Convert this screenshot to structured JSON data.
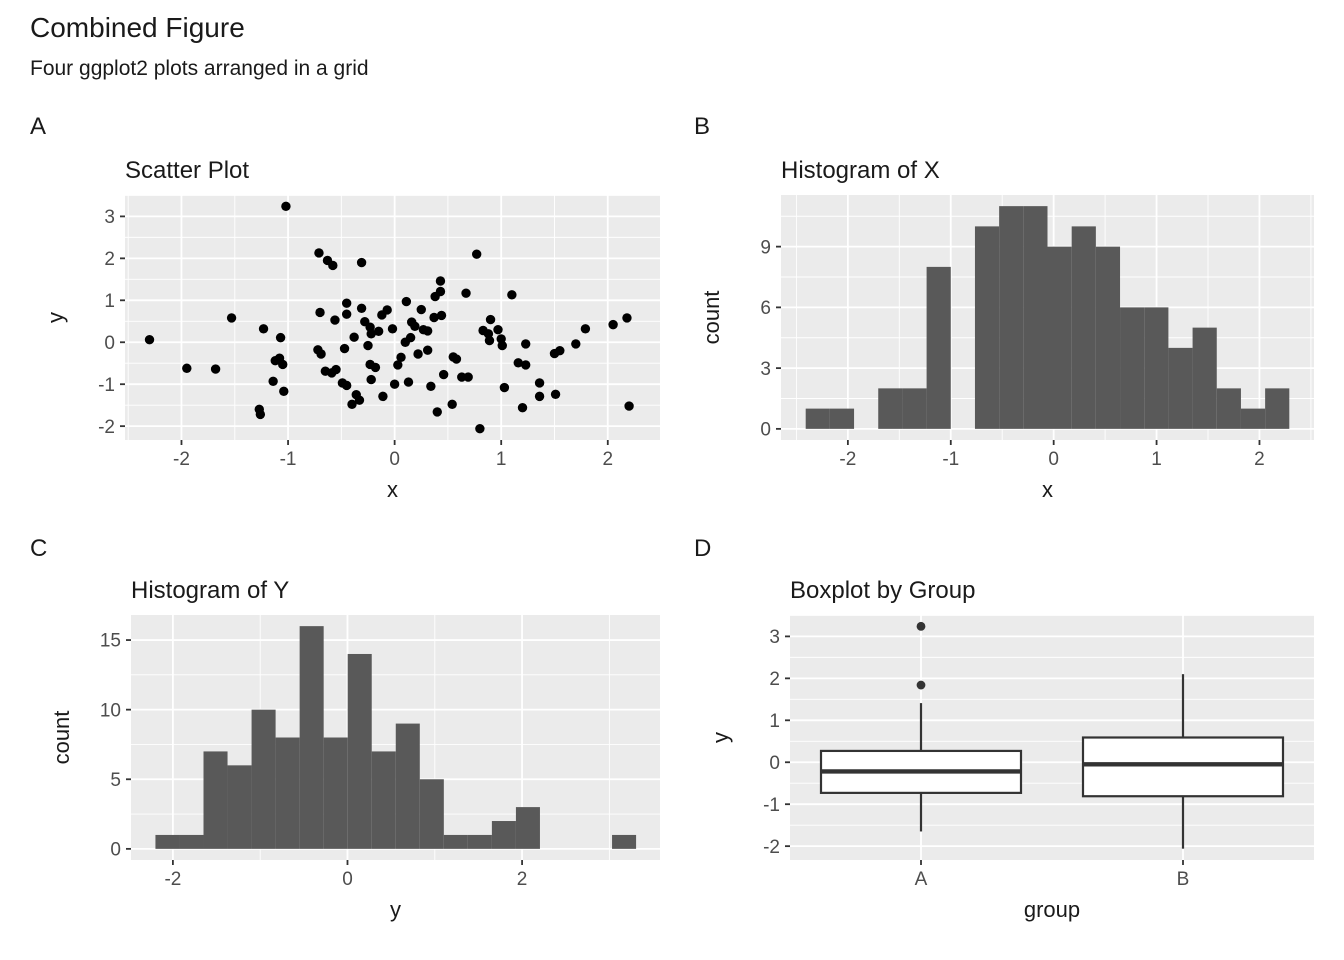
{
  "page": {
    "title": "Combined Figure",
    "subtitle": "Four ggplot2 plots arranged in a grid",
    "background": "#FFFFFF"
  },
  "theme": {
    "panel_bg": "#EBEBEB",
    "grid_color": "#FFFFFF",
    "tick_label_color": "#4D4D4D",
    "text_color": "#1A1A1A",
    "tick_mark_color": "#333333",
    "bar_fill": "#595959",
    "point_color": "#000000",
    "box_stroke": "#333333",
    "box_fill": "#FFFFFF",
    "outlier_color": "#333333"
  },
  "chart_data": [
    {
      "id": "scatter",
      "tag": "A",
      "type": "scatter",
      "title": "Scatter Plot",
      "xlabel": "x",
      "ylabel": "y",
      "xlim": [
        -2.53,
        2.49
      ],
      "ylim": [
        -2.33,
        3.51
      ],
      "xticks": [
        -2,
        -1,
        0,
        1,
        2
      ],
      "yticks": [
        -2,
        -1,
        0,
        1,
        2,
        3
      ],
      "grid": true,
      "points": [
        [
          -2.3,
          0.06
        ],
        [
          -1.95,
          -0.62
        ],
        [
          -1.68,
          -0.64
        ],
        [
          -1.53,
          0.58
        ],
        [
          -1.27,
          -1.6
        ],
        [
          -1.26,
          -1.72
        ],
        [
          -1.23,
          0.32
        ],
        [
          -1.14,
          -0.93
        ],
        [
          -1.12,
          -0.44
        ],
        [
          -1.08,
          -0.38
        ],
        [
          -1.07,
          0.11
        ],
        [
          -1.05,
          -0.53
        ],
        [
          -1.04,
          -1.17
        ],
        [
          -1.02,
          3.24
        ],
        [
          -0.72,
          -0.18
        ],
        [
          -0.71,
          2.13
        ],
        [
          -0.7,
          0.71
        ],
        [
          -0.69,
          -0.28
        ],
        [
          -0.65,
          -0.69
        ],
        [
          -0.63,
          1.95
        ],
        [
          -0.59,
          -0.73
        ],
        [
          -0.58,
          1.83
        ],
        [
          -0.56,
          0.53
        ],
        [
          -0.55,
          -0.65
        ],
        [
          -0.49,
          -0.97
        ],
        [
          -0.47,
          -0.15
        ],
        [
          -0.45,
          0.93
        ],
        [
          -0.45,
          0.67
        ],
        [
          -0.45,
          -1.03
        ],
        [
          -0.4,
          -1.48
        ],
        [
          -0.38,
          0.12
        ],
        [
          -0.36,
          -1.25
        ],
        [
          -0.33,
          -1.38
        ],
        [
          -0.31,
          1.9
        ],
        [
          -0.31,
          0.81
        ],
        [
          -0.28,
          0.49
        ],
        [
          -0.25,
          -0.08
        ],
        [
          -0.23,
          0.36
        ],
        [
          -0.23,
          -0.53
        ],
        [
          -0.22,
          0.2
        ],
        [
          -0.22,
          -0.89
        ],
        [
          -0.18,
          -0.6
        ],
        [
          -0.15,
          0.26
        ],
        [
          -0.12,
          0.65
        ],
        [
          -0.11,
          -1.29
        ],
        [
          -0.07,
          0.77
        ],
        [
          -0.02,
          0.32
        ],
        [
          0.0,
          -1.0
        ],
        [
          0.03,
          -0.54
        ],
        [
          0.06,
          -0.36
        ],
        [
          0.1,
          0.0
        ],
        [
          0.11,
          0.97
        ],
        [
          0.13,
          -0.95
        ],
        [
          0.15,
          0.11
        ],
        [
          0.16,
          0.48
        ],
        [
          0.19,
          0.38
        ],
        [
          0.22,
          -0.28
        ],
        [
          0.25,
          0.78
        ],
        [
          0.27,
          0.3
        ],
        [
          0.31,
          0.27
        ],
        [
          0.31,
          -0.19
        ],
        [
          0.34,
          -1.05
        ],
        [
          0.37,
          0.59
        ],
        [
          0.38,
          1.09
        ],
        [
          0.4,
          -1.66
        ],
        [
          0.43,
          1.46
        ],
        [
          0.43,
          1.21
        ],
        [
          0.44,
          0.64
        ],
        [
          0.46,
          -0.77
        ],
        [
          0.54,
          -1.48
        ],
        [
          0.55,
          -0.35
        ],
        [
          0.58,
          -0.4
        ],
        [
          0.63,
          -0.83
        ],
        [
          0.67,
          1.17
        ],
        [
          0.69,
          -0.83
        ],
        [
          0.77,
          2.1
        ],
        [
          0.8,
          -2.06
        ],
        [
          0.83,
          0.28
        ],
        [
          0.88,
          0.2
        ],
        [
          0.89,
          0.04
        ],
        [
          0.9,
          0.54
        ],
        [
          0.97,
          0.3
        ],
        [
          1.0,
          0.08
        ],
        [
          1.01,
          -0.08
        ],
        [
          1.03,
          -1.08
        ],
        [
          1.1,
          1.13
        ],
        [
          1.16,
          -0.49
        ],
        [
          1.2,
          -1.56
        ],
        [
          1.23,
          -0.04
        ],
        [
          1.23,
          -0.54
        ],
        [
          1.36,
          -0.97
        ],
        [
          1.36,
          -1.29
        ],
        [
          1.5,
          -0.27
        ],
        [
          1.51,
          -1.24
        ],
        [
          1.55,
          -0.2
        ],
        [
          1.7,
          -0.04
        ],
        [
          1.79,
          0.32
        ],
        [
          2.05,
          0.42
        ],
        [
          2.18,
          0.58
        ],
        [
          2.2,
          -1.52
        ]
      ]
    },
    {
      "id": "hist-x",
      "tag": "B",
      "type": "histogram",
      "title": "Histogram of X",
      "xlabel": "x",
      "ylabel": "count",
      "xlim": [
        -2.65,
        2.53
      ],
      "ylim": [
        -0.55,
        11.55
      ],
      "xticks": [
        -2,
        -1,
        0,
        1,
        2
      ],
      "yticks": [
        0,
        3,
        6,
        9
      ],
      "grid": true,
      "bin_start": -2.41,
      "bin_width": 0.235,
      "counts": [
        1,
        1,
        0,
        2,
        2,
        8,
        0,
        10,
        11,
        11,
        9,
        10,
        9,
        6,
        6,
        4,
        5,
        2,
        1,
        2
      ]
    },
    {
      "id": "hist-y",
      "tag": "C",
      "type": "histogram",
      "title": "Histogram of Y",
      "xlabel": "y",
      "ylabel": "count",
      "xlim": [
        -2.48,
        3.58
      ],
      "ylim": [
        -0.8,
        16.8
      ],
      "xticks": [
        -2,
        0,
        2
      ],
      "yticks": [
        0,
        5,
        10,
        15
      ],
      "grid": true,
      "bin_start": -2.2,
      "bin_width": 0.2753,
      "counts": [
        1,
        1,
        7,
        6,
        10,
        8,
        16,
        8,
        14,
        7,
        9,
        5,
        1,
        1,
        2,
        3,
        0,
        0,
        0,
        1
      ]
    },
    {
      "id": "boxplot",
      "tag": "D",
      "type": "boxplot",
      "title": "Boxplot by Group",
      "xlabel": "group",
      "ylabel": "y",
      "ylim": [
        -2.33,
        3.51
      ],
      "yticks": [
        -2,
        -1,
        0,
        1,
        2,
        3
      ],
      "grid": true,
      "groups": [
        {
          "label": "A",
          "whisker_low": -1.65,
          "q1": -0.73,
          "median": -0.22,
          "q3": 0.27,
          "whisker_high": 1.41,
          "outliers": [
            1.84,
            3.24
          ]
        },
        {
          "label": "B",
          "whisker_low": -2.06,
          "q1": -0.81,
          "median": -0.05,
          "q3": 0.59,
          "whisker_high": 2.1,
          "outliers": []
        }
      ]
    }
  ]
}
